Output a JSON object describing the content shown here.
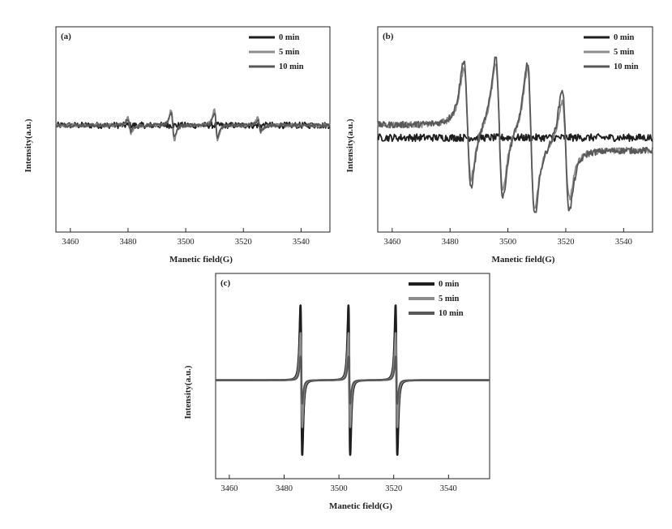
{
  "figure": {
    "background": "#ffffff",
    "colors": {
      "0 min": "#1e1e1e",
      "5 min": "#8c8c8c",
      "10 min": "#585858"
    }
  },
  "chart_data": [
    {
      "type": "line",
      "panel_label": "(a)",
      "xlabel": "Manetic field(G)",
      "ylabel": "Intensity(a.u.)",
      "xlim": [
        3455,
        3550
      ],
      "ylim": [
        -1,
        1
      ],
      "xticks": [
        3460,
        3480,
        3500,
        3520,
        3540
      ],
      "legend": {
        "position": "top-right",
        "entries": [
          "0 min",
          "5 min",
          "10 min"
        ]
      },
      "series": [
        {
          "name": "0 min",
          "color": "#1e1e1e",
          "noise": 0.035,
          "peaks": []
        },
        {
          "name": "5 min",
          "color": "#8c8c8c",
          "noise": 0.02,
          "peaks": [
            {
              "center": 3480.5,
              "amp": 0.1,
              "width": 0.9
            },
            {
              "center": 3495.5,
              "amp": 0.21,
              "width": 0.9
            },
            {
              "center": 3510.5,
              "amp": 0.21,
              "width": 0.9
            },
            {
              "center": 3525.5,
              "amp": 0.1,
              "width": 0.9
            }
          ]
        },
        {
          "name": "10 min",
          "color": "#585858",
          "noise": 0.02,
          "peaks": [
            {
              "center": 3480.5,
              "amp": 0.08,
              "width": 0.9
            },
            {
              "center": 3495.5,
              "amp": 0.17,
              "width": 0.9
            },
            {
              "center": 3510.5,
              "amp": 0.17,
              "width": 0.9
            },
            {
              "center": 3525.5,
              "amp": 0.08,
              "width": 0.9
            }
          ]
        }
      ]
    },
    {
      "type": "line",
      "panel_label": "(b)",
      "xlabel": "Manetic field(G)",
      "ylabel": "Intensity(a.u.)",
      "xlim": [
        3455,
        3550
      ],
      "ylim": [
        -1,
        1
      ],
      "xticks": [
        3460,
        3480,
        3500,
        3520,
        3540
      ],
      "legend": {
        "position": "top-right",
        "entries": [
          "0 min",
          "5 min",
          "10 min"
        ]
      },
      "series": [
        {
          "name": "0 min",
          "color": "#1e1e1e",
          "noise": 0.035,
          "baseline": 0.0,
          "peaks": []
        },
        {
          "name": "5 min",
          "color": "#8c8c8c",
          "noise": 0.03,
          "baseline": 0.05,
          "peaks": [
            {
              "center": 3486,
              "amp": 0.62,
              "width": 2.2
            },
            {
              "center": 3497,
              "amp": 0.7,
              "width": 2.2
            },
            {
              "center": 3508,
              "amp": 0.78,
              "width": 2.2
            },
            {
              "center": 3520,
              "amp": 0.55,
              "width": 2.2
            }
          ]
        },
        {
          "name": "10 min",
          "color": "#585858",
          "noise": 0.03,
          "baseline": 0.05,
          "peaks": [
            {
              "center": 3486,
              "amp": 0.72,
              "width": 2.2
            },
            {
              "center": 3497,
              "amp": 0.8,
              "width": 2.2
            },
            {
              "center": 3508,
              "amp": 0.85,
              "width": 2.2
            },
            {
              "center": 3520,
              "amp": 0.68,
              "width": 2.2
            }
          ]
        }
      ]
    },
    {
      "type": "line",
      "panel_label": "(c)",
      "xlabel": "Manetic field(G)",
      "ylabel": "Intensity(a.u.)",
      "xlim": [
        3455,
        3555
      ],
      "ylim": [
        -1,
        1
      ],
      "xticks": [
        3460,
        3480,
        3500,
        3520,
        3540
      ],
      "legend": {
        "position": "top-right",
        "entries": [
          "0 min",
          "5 min",
          "10 min"
        ]
      },
      "series": [
        {
          "name": "0 min",
          "color": "#1e1e1e",
          "noise": 0,
          "peaks": [
            {
              "center": 3486.3,
              "amp": 0.95,
              "width": 0.55
            },
            {
              "center": 3503.8,
              "amp": 0.95,
              "width": 0.55
            },
            {
              "center": 3521.0,
              "amp": 0.95,
              "width": 0.55
            }
          ]
        },
        {
          "name": "5 min",
          "color": "#8c8c8c",
          "noise": 0,
          "peaks": [
            {
              "center": 3486.3,
              "amp": 0.6,
              "width": 0.55
            },
            {
              "center": 3503.8,
              "amp": 0.6,
              "width": 0.55
            },
            {
              "center": 3521.0,
              "amp": 0.6,
              "width": 0.55
            }
          ]
        },
        {
          "name": "10 min",
          "color": "#585858",
          "noise": 0,
          "peaks": [
            {
              "center": 3486.3,
              "amp": 0.3,
              "width": 0.55
            },
            {
              "center": 3503.8,
              "amp": 0.3,
              "width": 0.55
            },
            {
              "center": 3521.0,
              "amp": 0.3,
              "width": 0.55
            }
          ]
        }
      ]
    }
  ]
}
